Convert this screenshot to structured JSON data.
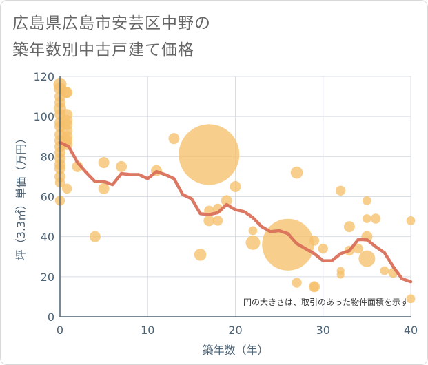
{
  "title_line1": "広島県広島市安芸区中野の",
  "title_line2": "築年数別中古戸建て価格",
  "colors": {
    "bubble": "#f5c06a",
    "line": "#d9705a",
    "grid": "#d8dee6",
    "axis": "#4c6275"
  },
  "chart_data": {
    "type": "scatter",
    "title": "広島県広島市安芸区中野の築年数別中古戸建て価格",
    "xlabel": "築年数（年）",
    "ylabel": "坪（3.3㎡）単価（万円）",
    "xlim": [
      0,
      40
    ],
    "ylim": [
      0,
      120
    ],
    "xticks": [
      0,
      10,
      20,
      30,
      40
    ],
    "yticks": [
      0,
      20,
      40,
      60,
      80,
      100,
      120
    ],
    "note": "円の大きさは、取引のあった物件面積を示す",
    "bubbles": [
      {
        "x": 0,
        "y": 116,
        "s": 1.2
      },
      {
        "x": 0,
        "y": 114,
        "s": 1.1
      },
      {
        "x": 0,
        "y": 110,
        "s": 1.0
      },
      {
        "x": 0,
        "y": 107,
        "s": 1.0
      },
      {
        "x": 0,
        "y": 104,
        "s": 1.1
      },
      {
        "x": 0,
        "y": 101,
        "s": 1.0
      },
      {
        "x": 0,
        "y": 97,
        "s": 1.0
      },
      {
        "x": 0,
        "y": 95,
        "s": 1.0
      },
      {
        "x": 0,
        "y": 91,
        "s": 1.0
      },
      {
        "x": 0,
        "y": 88,
        "s": 1.0
      },
      {
        "x": 0,
        "y": 85,
        "s": 1.0
      },
      {
        "x": 0,
        "y": 82,
        "s": 1.0
      },
      {
        "x": 0,
        "y": 79,
        "s": 1.0
      },
      {
        "x": 0,
        "y": 76,
        "s": 1.0
      },
      {
        "x": 0,
        "y": 74,
        "s": 1.0
      },
      {
        "x": 0,
        "y": 70,
        "s": 1.0
      },
      {
        "x": 0,
        "y": 67,
        "s": 0.9
      },
      {
        "x": 0,
        "y": 58,
        "s": 0.9
      },
      {
        "x": 0.7,
        "y": 112,
        "s": 1.0
      },
      {
        "x": 0.8,
        "y": 112,
        "s": 1.0
      },
      {
        "x": 0.8,
        "y": 101,
        "s": 1.0
      },
      {
        "x": 0.8,
        "y": 98,
        "s": 1.0
      },
      {
        "x": 0.8,
        "y": 96,
        "s": 1.0
      },
      {
        "x": 0.8,
        "y": 93,
        "s": 1.0
      },
      {
        "x": 0.8,
        "y": 90,
        "s": 1.0
      },
      {
        "x": 0.8,
        "y": 88,
        "s": 1.0
      },
      {
        "x": 0.8,
        "y": 86,
        "s": 1.0
      },
      {
        "x": 0.8,
        "y": 64,
        "s": 0.9
      },
      {
        "x": 2,
        "y": 75,
        "s": 1.0
      },
      {
        "x": 4,
        "y": 40,
        "s": 1.0
      },
      {
        "x": 5,
        "y": 77,
        "s": 1.0
      },
      {
        "x": 5,
        "y": 64,
        "s": 1.0
      },
      {
        "x": 7,
        "y": 75,
        "s": 1.0
      },
      {
        "x": 11,
        "y": 73,
        "s": 1.0
      },
      {
        "x": 13,
        "y": 89,
        "s": 1.0
      },
      {
        "x": 16,
        "y": 31,
        "s": 1.1
      },
      {
        "x": 17,
        "y": 81,
        "s": 5.5
      },
      {
        "x": 17,
        "y": 53,
        "s": 0.9
      },
      {
        "x": 17,
        "y": 48,
        "s": 1.0
      },
      {
        "x": 18,
        "y": 54,
        "s": 0.9
      },
      {
        "x": 18,
        "y": 48,
        "s": 0.9
      },
      {
        "x": 19,
        "y": 58,
        "s": 1.0
      },
      {
        "x": 20,
        "y": 65,
        "s": 1.0
      },
      {
        "x": 22,
        "y": 43,
        "s": 0.8
      },
      {
        "x": 22,
        "y": 37,
        "s": 1.3
      },
      {
        "x": 26,
        "y": 36,
        "s": 4.7
      },
      {
        "x": 27,
        "y": 72,
        "s": 1.1
      },
      {
        "x": 27,
        "y": 17,
        "s": 0.9
      },
      {
        "x": 29,
        "y": 38,
        "s": 0.9
      },
      {
        "x": 29,
        "y": 15,
        "s": 1.0
      },
      {
        "x": 29,
        "y": 15,
        "s": 0.8
      },
      {
        "x": 30,
        "y": 34,
        "s": 0.9
      },
      {
        "x": 32,
        "y": 63,
        "s": 0.9
      },
      {
        "x": 32,
        "y": 23,
        "s": 0.7
      },
      {
        "x": 32,
        "y": 21,
        "s": 0.7
      },
      {
        "x": 33,
        "y": 45,
        "s": 1.0
      },
      {
        "x": 33,
        "y": 33,
        "s": 0.9
      },
      {
        "x": 34,
        "y": 34,
        "s": 0.9
      },
      {
        "x": 35,
        "y": 58,
        "s": 0.8
      },
      {
        "x": 35,
        "y": 49,
        "s": 0.8
      },
      {
        "x": 35,
        "y": 40,
        "s": 1.0
      },
      {
        "x": 35,
        "y": 29,
        "s": 1.5
      },
      {
        "x": 36,
        "y": 49,
        "s": 0.9
      },
      {
        "x": 37,
        "y": 23,
        "s": 0.8
      },
      {
        "x": 38,
        "y": 22,
        "s": 0.9
      },
      {
        "x": 40,
        "y": 48,
        "s": 0.8
      },
      {
        "x": 40,
        "y": 9,
        "s": 0.8
      }
    ],
    "trend": {
      "name": "平均",
      "x": [
        0,
        1,
        2,
        3,
        4,
        5,
        6,
        7,
        8,
        9,
        10,
        11,
        12,
        13,
        14,
        15,
        16,
        17,
        18,
        19,
        20,
        21,
        22,
        23,
        24,
        25,
        26,
        27,
        28,
        29,
        30,
        31,
        32,
        33,
        34,
        35,
        36,
        37,
        38,
        39,
        40
      ],
      "y": [
        87,
        85,
        77,
        72,
        67.5,
        67.5,
        66,
        71.5,
        71,
        71,
        69,
        72.5,
        71,
        69,
        61,
        59,
        51.5,
        51,
        52,
        56,
        53.5,
        52.5,
        49.5,
        45,
        42.5,
        43,
        41.5,
        36.5,
        34,
        31.5,
        28,
        28,
        31.5,
        33,
        38.5,
        38.5,
        35,
        32,
        25,
        19,
        17.5
      ]
    }
  }
}
